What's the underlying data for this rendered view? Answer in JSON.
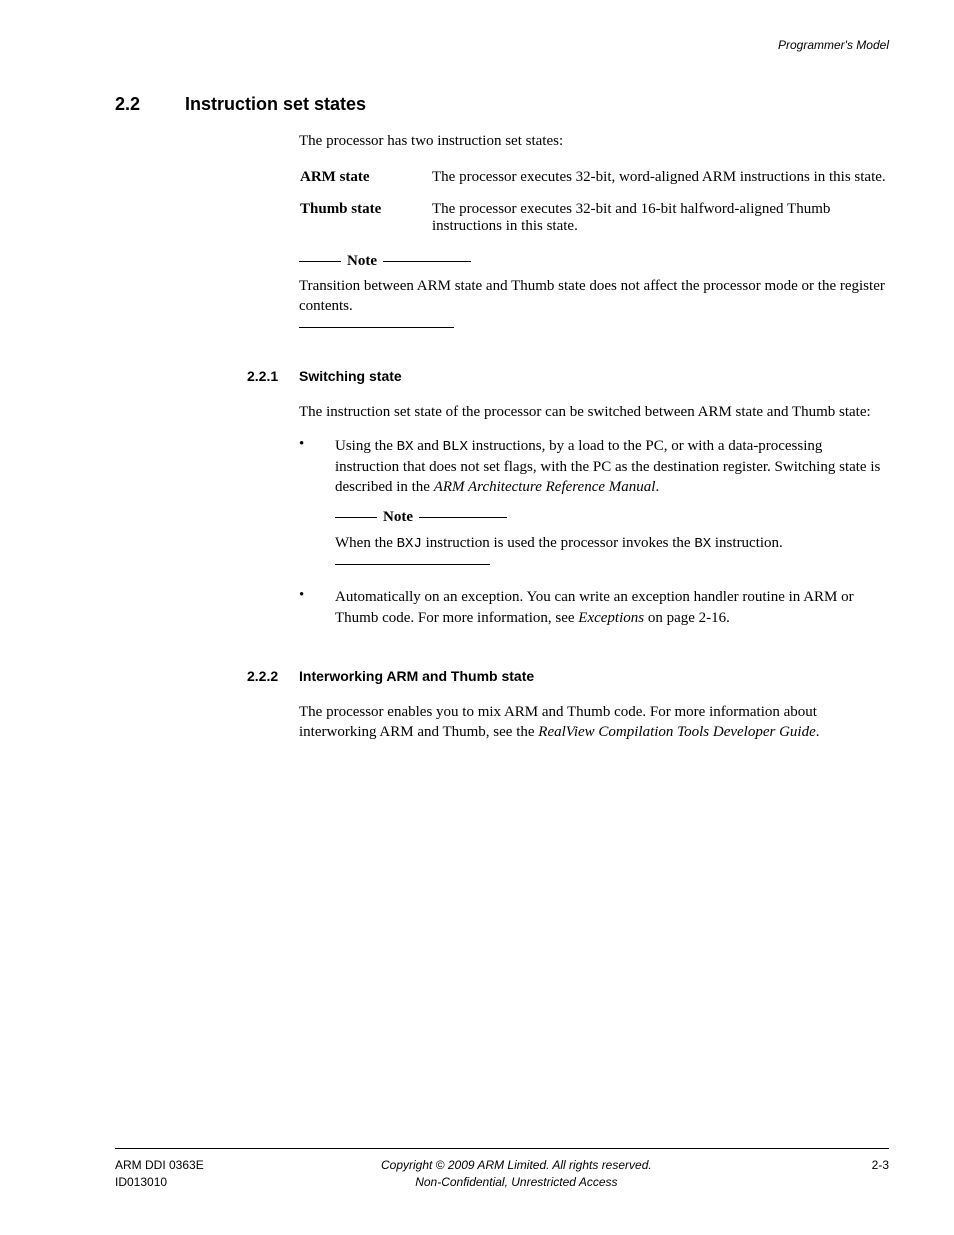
{
  "header": {
    "right": "Programmer's Model"
  },
  "section": {
    "num": "2.2",
    "title": "Instruction set states",
    "intro": "The processor has two instruction set states:",
    "defs": [
      {
        "term": "ARM state",
        "desc": "The processor executes 32-bit, word-aligned ARM instructions in this state."
      },
      {
        "term": "Thumb state",
        "desc": "The processor executes 32-bit and 16-bit halfword-aligned Thumb instructions in this state."
      }
    ],
    "note": {
      "label": "Note",
      "body": "Transition between ARM state and Thumb state does not affect the processor mode or the register contents."
    }
  },
  "sub1": {
    "num": "2.2.1",
    "title": "Switching state",
    "intro": "The instruction set state of the processor can be switched between ARM state and Thumb state:",
    "bullet1": {
      "pre": "Using the ",
      "code1": "BX",
      "mid1": " and ",
      "code2": "BLX",
      "post1": " instructions, by a load to the PC, or with a data-processing instruction that does not set flags, with the PC as the destination register. Switching state is described in the ",
      "ital": "ARM Architecture Reference Manual",
      "post2": "."
    },
    "nested_note": {
      "label": "Note",
      "pre": "When the ",
      "code": "BXJ",
      "mid": " instruction is used the processor invokes the ",
      "code2": "BX",
      "post": " instruction."
    },
    "bullet2": {
      "pre": "Automatically on an exception. You can write an exception handler routine in ARM or Thumb code. For more information, see ",
      "ital": "Exceptions",
      "post": " on page 2-16."
    }
  },
  "sub2": {
    "num": "2.2.2",
    "title": "Interworking ARM and Thumb state",
    "para_pre": "The processor enables you to mix ARM and Thumb code. For more information about interworking ARM and Thumb, see the ",
    "para_ital": "RealView Compilation Tools Developer Guide",
    "para_post": "."
  },
  "footer": {
    "left1": "ARM DDI 0363E",
    "left2": "ID013010",
    "center1": "Copyright © 2009 ARM Limited. All rights reserved.",
    "center2": "Non-Confidential, Unrestricted Access",
    "right": "2-3"
  }
}
